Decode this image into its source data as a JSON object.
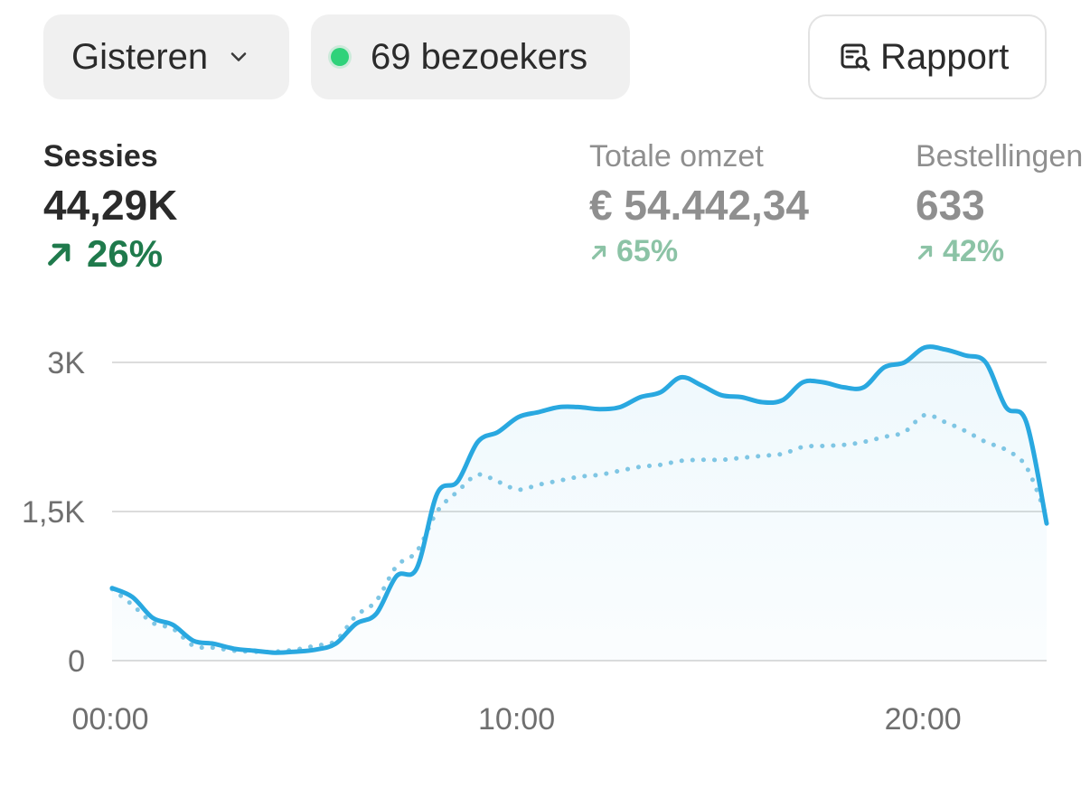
{
  "controls": {
    "date_label": "Gisteren",
    "visitors_label": "69 bezoekers",
    "report_label": "Rapport"
  },
  "metrics": [
    {
      "label": "Sessies",
      "value": "44,29K",
      "change": "26%",
      "active": true
    },
    {
      "label": "Totale omzet",
      "value": "€ 54.442,34",
      "change": "65%",
      "active": false
    },
    {
      "label": "Bestellingen",
      "value": "633",
      "change": "42%",
      "active": false
    }
  ],
  "colors": {
    "current_line": "#29a8e0",
    "comparison_line": "#7fc6e4",
    "positive": "#1f7a4c",
    "live": "#2fd27a",
    "grid": "#dcdcdc"
  },
  "icons": {
    "date": "chevron-down-icon",
    "visitors": "live-dot-icon",
    "report": "report-search-icon",
    "change": "arrow-up-right-icon"
  },
  "chart_data": {
    "type": "line",
    "x_unit": "hour",
    "xlim": [
      0,
      23
    ],
    "ylim": [
      0,
      3000
    ],
    "x_ticks": [
      {
        "x": 0,
        "label": "00:00"
      },
      {
        "x": 10,
        "label": "10:00"
      },
      {
        "x": 20,
        "label": "20:00"
      }
    ],
    "y_ticks": [
      {
        "y": 0,
        "label": "0"
      },
      {
        "y": 1500,
        "label": "1,5K"
      },
      {
        "y": 3000,
        "label": "3K"
      }
    ],
    "grid": true,
    "series": [
      {
        "style": "solid",
        "x": [
          0,
          0.5,
          1,
          1.5,
          2,
          2.5,
          3,
          3.5,
          4,
          4.5,
          5,
          5.5,
          6,
          6.5,
          7,
          7.5,
          8,
          8.5,
          9,
          9.5,
          10,
          10.5,
          11,
          11.5,
          12,
          12.5,
          13,
          13.5,
          14,
          14.5,
          15,
          15.5,
          16,
          16.5,
          17,
          17.5,
          18,
          18.5,
          19,
          19.5,
          20,
          20.5,
          21,
          21.5,
          22,
          22.5,
          23
        ],
        "values": [
          730,
          640,
          430,
          360,
          200,
          170,
          120,
          100,
          80,
          90,
          110,
          170,
          370,
          470,
          850,
          930,
          1680,
          1800,
          2200,
          2300,
          2450,
          2500,
          2550,
          2550,
          2530,
          2550,
          2650,
          2700,
          2850,
          2770,
          2670,
          2650,
          2600,
          2620,
          2800,
          2800,
          2750,
          2750,
          2950,
          3000,
          3150,
          3130,
          3070,
          3000,
          2550,
          2400,
          1380
        ]
      },
      {
        "style": "dotted",
        "x": [
          0,
          0.5,
          1,
          1.5,
          2,
          2.5,
          3,
          3.5,
          4,
          4.5,
          5,
          5.5,
          6,
          6.5,
          7,
          7.5,
          8,
          8.5,
          9,
          9.5,
          10,
          10.5,
          11,
          11.5,
          12,
          12.5,
          13,
          13.5,
          14,
          14.5,
          15,
          15.5,
          16,
          16.5,
          17,
          17.5,
          18,
          18.5,
          19,
          19.5,
          20,
          20.5,
          21,
          21.5,
          22,
          22.5,
          23
        ],
        "values": [
          720,
          560,
          380,
          320,
          150,
          130,
          100,
          90,
          90,
          110,
          150,
          200,
          450,
          600,
          950,
          1100,
          1500,
          1700,
          1870,
          1800,
          1720,
          1770,
          1810,
          1850,
          1870,
          1910,
          1950,
          1970,
          2010,
          2020,
          2020,
          2040,
          2060,
          2080,
          2150,
          2160,
          2170,
          2200,
          2250,
          2300,
          2470,
          2400,
          2310,
          2200,
          2120,
          1950,
          1450
        ]
      }
    ]
  }
}
